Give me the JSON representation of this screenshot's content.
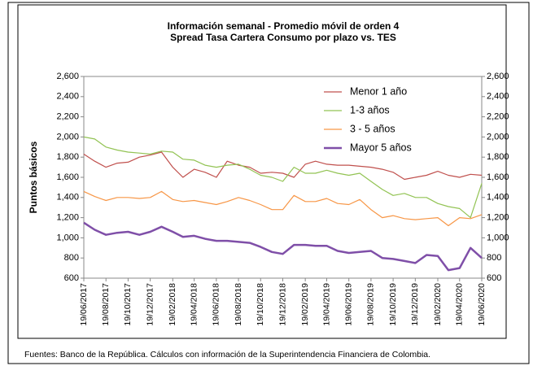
{
  "chart_data": {
    "type": "line",
    "title": "Información semanal - Promedio móvil de orden 4",
    "subtitle": "Spread Tasa Cartera Consumo  por plazo vs. TES",
    "y_label": "Puntos básicos",
    "source": "Fuentes: Banco de la República. Cálculos con información de la Superintendencia Financiera de Colombia.",
    "x": [
      "19/06/2017",
      "19/07/2017",
      "19/08/2017",
      "19/09/2017",
      "19/10/2017",
      "19/11/2017",
      "19/12/2017",
      "19/01/2018",
      "19/02/2018",
      "19/03/2018",
      "19/04/2018",
      "19/05/2018",
      "19/06/2018",
      "19/07/2018",
      "19/08/2018",
      "19/09/2018",
      "19/10/2018",
      "19/11/2018",
      "19/12/2018",
      "19/01/2019",
      "19/02/2019",
      "19/03/2019",
      "19/04/2019",
      "19/05/2019",
      "19/06/2019",
      "19/07/2019",
      "19/08/2019",
      "19/09/2019",
      "19/10/2019",
      "19/11/2019",
      "19/12/2019",
      "19/01/2020",
      "19/02/2020",
      "19/03/2020",
      "19/04/2020",
      "19/05/2020",
      "19/06/2020"
    ],
    "xticks": [
      "19/06/2017",
      "19/08/2017",
      "19/10/2017",
      "19/12/2017",
      "19/02/2018",
      "19/04/2018",
      "19/06/2018",
      "19/08/2018",
      "19/10/2018",
      "19/12/2018",
      "19/02/2019",
      "19/04/2019",
      "19/06/2019",
      "19/08/2019",
      "19/10/2019",
      "19/12/2019",
      "19/02/2020",
      "19/04/2020",
      "19/06/2020"
    ],
    "series": [
      {
        "name": "Menor 1 año",
        "color": "#c0504d",
        "width": 1.2,
        "values": [
          1830,
          1760,
          1700,
          1740,
          1750,
          1800,
          1820,
          1850,
          1700,
          1600,
          1680,
          1650,
          1600,
          1760,
          1720,
          1700,
          1640,
          1650,
          1640,
          1600,
          1730,
          1760,
          1730,
          1720,
          1720,
          1710,
          1700,
          1680,
          1650,
          1580,
          1600,
          1620,
          1660,
          1620,
          1600,
          1630,
          1620
        ]
      },
      {
        "name": "1-3 años",
        "color": "#92c353",
        "width": 1.2,
        "values": [
          2000,
          1980,
          1900,
          1870,
          1850,
          1840,
          1830,
          1860,
          1850,
          1780,
          1770,
          1720,
          1700,
          1720,
          1730,
          1680,
          1620,
          1600,
          1560,
          1700,
          1640,
          1640,
          1670,
          1640,
          1620,
          1640,
          1560,
          1480,
          1420,
          1440,
          1400,
          1400,
          1340,
          1310,
          1290,
          1200,
          1540
        ]
      },
      {
        "name": "3 - 5 años",
        "color": "#f79646",
        "width": 1.2,
        "values": [
          1460,
          1410,
          1370,
          1400,
          1400,
          1390,
          1400,
          1460,
          1380,
          1360,
          1370,
          1350,
          1330,
          1360,
          1400,
          1370,
          1330,
          1280,
          1280,
          1420,
          1360,
          1360,
          1390,
          1340,
          1330,
          1380,
          1280,
          1200,
          1220,
          1190,
          1180,
          1190,
          1200,
          1120,
          1200,
          1190,
          1230
        ]
      },
      {
        "name": "Mayor 5 años",
        "color": "#7f4fa8",
        "width": 2.5,
        "values": [
          1150,
          1080,
          1030,
          1050,
          1060,
          1030,
          1060,
          1110,
          1060,
          1010,
          1020,
          990,
          970,
          970,
          960,
          950,
          910,
          860,
          840,
          930,
          930,
          920,
          920,
          870,
          850,
          860,
          870,
          800,
          790,
          770,
          750,
          830,
          820,
          680,
          700,
          900,
          800
        ]
      }
    ],
    "ylim": [
      600,
      2600
    ],
    "yticks": [
      {
        "value": 600,
        "label": "600"
      },
      {
        "value": 800,
        "label": "800"
      },
      {
        "value": 1000,
        "label": "1,000"
      },
      {
        "value": 1200,
        "label": "1,200"
      },
      {
        "value": 1400,
        "label": "1,400"
      },
      {
        "value": 1600,
        "label": "1,600"
      },
      {
        "value": 1800,
        "label": "1,800"
      },
      {
        "value": 2000,
        "label": "2,000"
      },
      {
        "value": 2200,
        "label": "2,200"
      },
      {
        "value": 2400,
        "label": "2,400"
      },
      {
        "value": 2600,
        "label": "2,600"
      }
    ],
    "y2lim": [
      600,
      2600
    ],
    "y2ticks": [
      {
        "value": 600,
        "label": "600"
      },
      {
        "value": 800,
        "label": "800"
      },
      {
        "value": 1000,
        "label": "1,000"
      },
      {
        "value": 1200,
        "label": "1,200"
      },
      {
        "value": 1400,
        "label": "1,400"
      },
      {
        "value": 1600,
        "label": "1,600"
      },
      {
        "value": 1800,
        "label": "1,800"
      },
      {
        "value": 2000,
        "label": "2,000"
      },
      {
        "value": 2200,
        "label": "2,200"
      },
      {
        "value": 2400,
        "label": "2,400"
      },
      {
        "value": 2600,
        "label": "2,600"
      }
    ],
    "legend": "top-right"
  }
}
